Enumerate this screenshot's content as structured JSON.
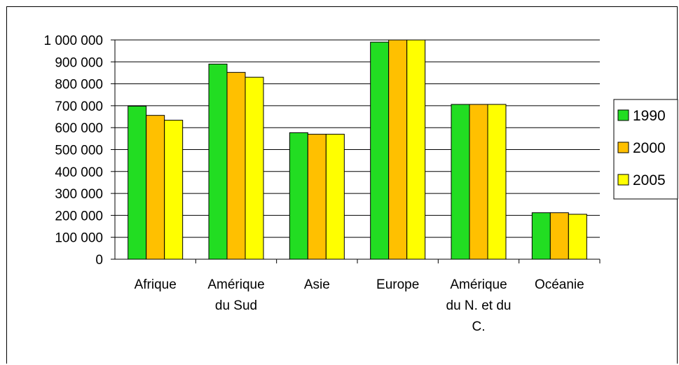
{
  "chart_data": {
    "type": "bar",
    "categories": [
      [
        "Afrique"
      ],
      [
        "Amérique",
        "du Sud"
      ],
      [
        "Asie"
      ],
      [
        "Europe"
      ],
      [
        "Amérique",
        "du N. et du",
        "C."
      ],
      [
        "Océanie"
      ]
    ],
    "series": [
      {
        "name": "1990",
        "color": "#22dd22",
        "values": [
          698000,
          890000,
          577000,
          990000,
          706000,
          212000
        ]
      },
      {
        "name": "2000",
        "color": "#ffc000",
        "values": [
          656000,
          852000,
          570000,
          1000000,
          706000,
          212000
        ]
      },
      {
        "name": "2005",
        "color": "#ffff00",
        "values": [
          634000,
          830000,
          570000,
          1000000,
          706000,
          205000
        ]
      }
    ],
    "yticks": [
      "0",
      "100 000",
      "200 000",
      "300 000",
      "400 000",
      "500 000",
      "600 000",
      "700 000",
      "800 000",
      "900 000",
      "1 000 000"
    ],
    "ylim": [
      0,
      1000000
    ],
    "grid": true,
    "legend_position": "right",
    "colors": {
      "axis": "#000000",
      "grid": "#000000",
      "bar_border": "#000000"
    }
  }
}
